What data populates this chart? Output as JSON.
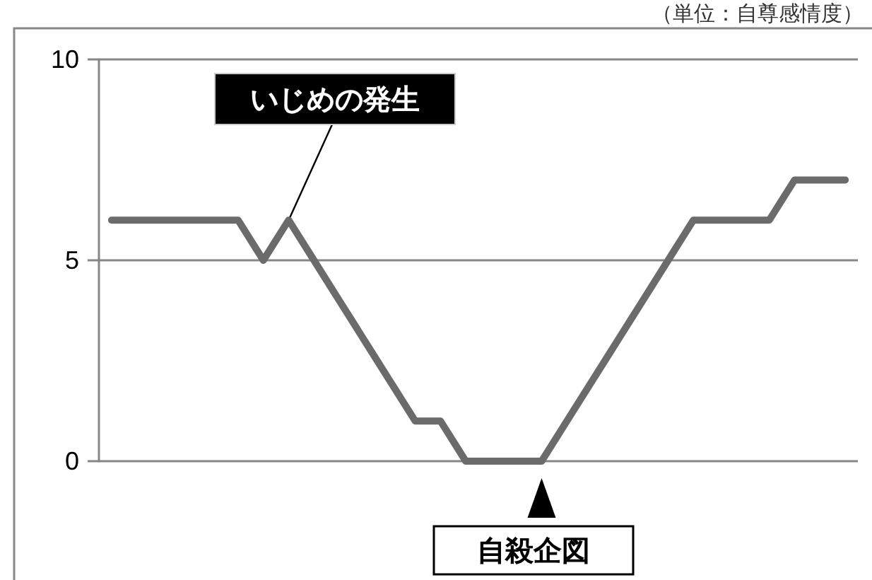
{
  "chart_data": {
    "type": "line",
    "subtitle": "（単位：自尊感情度）",
    "categories": [
      null,
      null,
      null,
      null,
      null,
      null,
      null,
      null,
      null,
      null,
      null,
      null,
      null,
      null,
      null,
      null,
      null,
      null,
      null,
      null,
      null,
      null,
      null,
      null,
      null,
      null,
      null,
      null,
      null,
      null
    ],
    "series": [
      {
        "color": "#6b6b6b",
        "values": [
          6,
          6,
          6,
          6,
          6,
          6,
          5,
          6,
          5,
          4,
          3,
          2,
          1,
          1,
          0,
          0,
          0,
          0,
          1,
          2,
          3,
          4,
          5,
          6,
          6,
          6,
          6,
          7,
          7,
          7
        ]
      }
    ],
    "ylim": [
      0,
      10
    ],
    "yticks": [
      0,
      5,
      10
    ],
    "grid": "y",
    "marker": "none",
    "line_style": "solid",
    "annotations": [
      "いじめの発生",
      "自殺企図"
    ]
  }
}
